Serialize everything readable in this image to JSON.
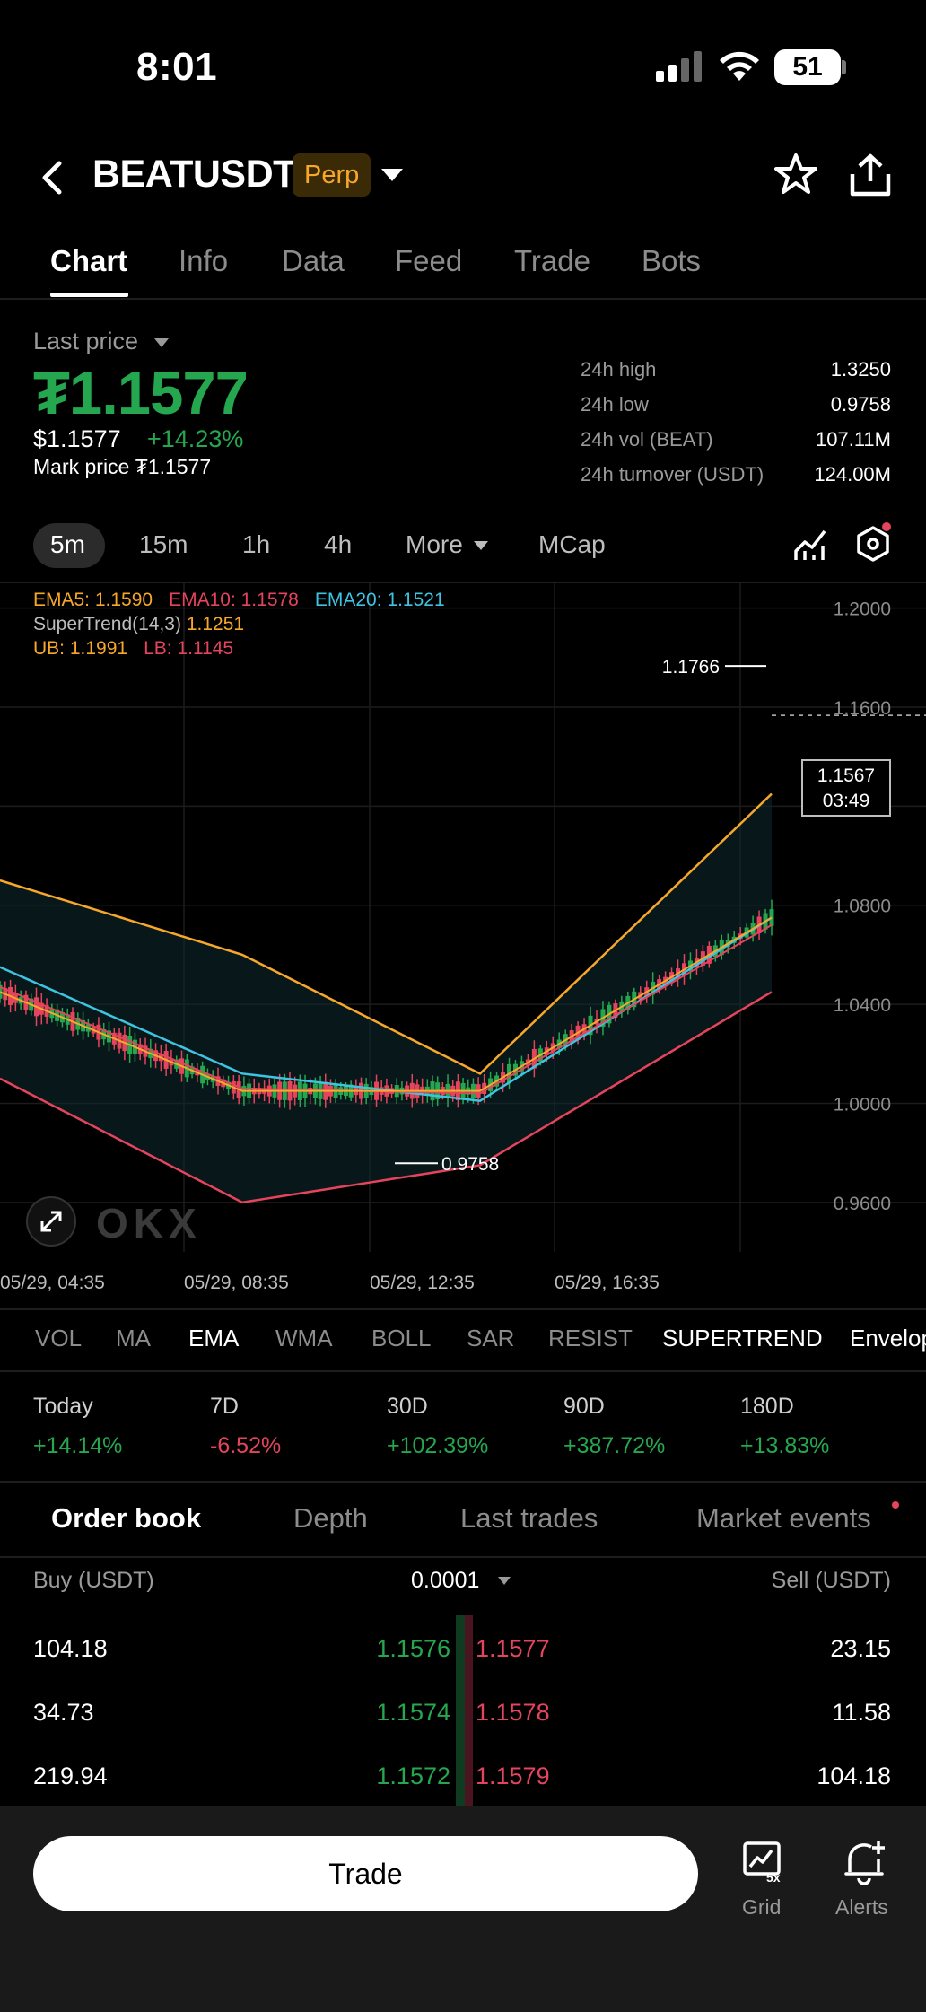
{
  "status": {
    "time": "8:01",
    "battery": "51"
  },
  "header": {
    "pair": "BEATUSDT",
    "badge": "Perp"
  },
  "tabs": [
    "Chart",
    "Info",
    "Data",
    "Feed",
    "Trade",
    "Bots"
  ],
  "price": {
    "label": "Last price",
    "last": "₮1.1577",
    "usd": "$1.1577",
    "change": "+14.23%",
    "mark": "Mark price ₮1.1577",
    "stats": [
      {
        "k": "24h high",
        "v": "1.3250"
      },
      {
        "k": "24h low",
        "v": "0.9758"
      },
      {
        "k": "24h vol (BEAT)",
        "v": "107.11M"
      },
      {
        "k": "24h turnover (USDT)",
        "v": "124.00M"
      }
    ]
  },
  "intervals": [
    "5m",
    "15m",
    "1h",
    "4h",
    "More",
    "MCap"
  ],
  "chart": {
    "legend": {
      "ema5": "EMA5: 1.1590",
      "ema10": "EMA10: 1.1578",
      "ema20": "EMA20: 1.1521",
      "supertrend": "SuperTrend(14,3)",
      "supertrend_val": "1.1251",
      "ub": "UB: 1.1991",
      "lb": "LB: 1.1145"
    },
    "yticks": [
      "1.2000",
      "1.1600",
      "1.1200",
      "1.0800",
      "1.0400",
      "1.0000",
      "0.9600"
    ],
    "xticks": [
      "05/29, 04:35",
      "05/29, 08:35",
      "05/29, 12:35",
      "05/29, 16:35"
    ],
    "high_marker": "1.1766",
    "low_marker": "0.9758",
    "current_price": "1.1567",
    "countdown": "03:49",
    "watermark": "OKX",
    "colors": {
      "ema5": "#f7a82a",
      "ema10": "#e4445c",
      "ema20": "#3ec3e0",
      "up": "#25a750",
      "down": "#e4445c"
    }
  },
  "chart_data": {
    "type": "line",
    "title": "",
    "xlabel": "",
    "ylabel": "",
    "x": [
      "05/29, 04:35",
      "05/29, 08:35",
      "05/29, 12:35",
      "05/29, 16:35"
    ],
    "ylim": [
      0.94,
      1.21
    ],
    "series": [
      {
        "name": "EMA5",
        "values": [
          1.045,
          1.005,
          1.005,
          1.075
        ]
      },
      {
        "name": "EMA10",
        "values": [
          1.047,
          1.006,
          1.004,
          1.072
        ]
      },
      {
        "name": "EMA20",
        "values": [
          1.055,
          1.012,
          1.001,
          1.075
        ]
      },
      {
        "name": "UB",
        "values": [
          1.09,
          1.06,
          1.012,
          1.125
        ]
      },
      {
        "name": "LB",
        "values": [
          1.01,
          0.96,
          0.975,
          1.045
        ]
      }
    ]
  },
  "indicators": [
    "VOL",
    "MA",
    "EMA",
    "WMA",
    "BOLL",
    "SAR",
    "RESIST",
    "SUPERTREND",
    "Envelope"
  ],
  "performance": [
    {
      "k": "Today",
      "v": "+14.14%",
      "dir": "pos"
    },
    {
      "k": "7D",
      "v": "-6.52%",
      "dir": "neg"
    },
    {
      "k": "30D",
      "v": "+102.39%",
      "dir": "pos"
    },
    {
      "k": "90D",
      "v": "+387.72%",
      "dir": "pos"
    },
    {
      "k": "180D",
      "v": "+13.83%",
      "dir": "pos"
    }
  ],
  "orderbook": {
    "tabs": [
      "Order book",
      "Depth",
      "Last trades",
      "Market events"
    ],
    "buy_label": "Buy (USDT)",
    "sell_label": "Sell (USDT)",
    "precision": "0.0001",
    "rows": [
      {
        "buy_amt": "104.18",
        "bid": "1.1576",
        "ask": "1.1577",
        "sell_amt": "23.15"
      },
      {
        "buy_amt": "34.73",
        "bid": "1.1574",
        "ask": "1.1578",
        "sell_amt": "11.58"
      },
      {
        "buy_amt": "219.94",
        "bid": "1.1572",
        "ask": "1.1579",
        "sell_amt": "104.18"
      }
    ]
  },
  "bottom": {
    "trade": "Trade",
    "grid": "Grid",
    "grid_badge": "5x",
    "alerts": "Alerts"
  }
}
